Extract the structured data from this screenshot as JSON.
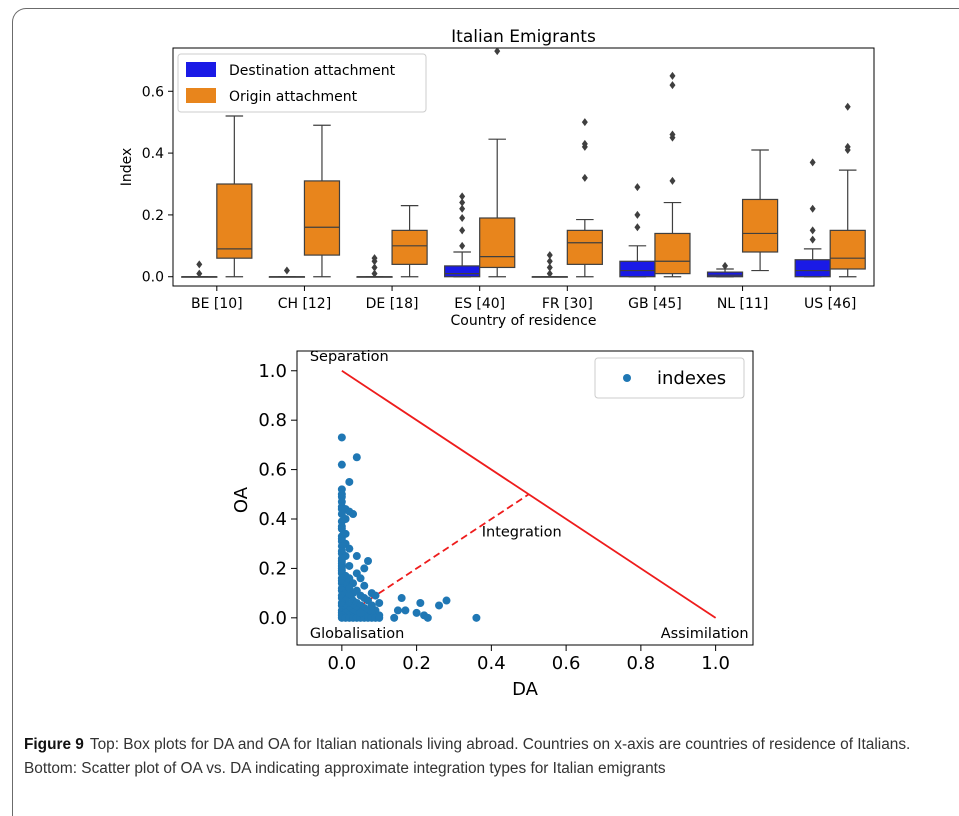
{
  "chart_data": [
    {
      "type": "box",
      "title": "Italian Emigrants",
      "xlabel": "Country of residence",
      "ylabel": "Index",
      "ylim": [
        -0.03,
        0.74
      ],
      "yticks": [
        "0.0",
        "0.2",
        "0.4",
        "0.6"
      ],
      "categories": [
        "BE [10]",
        "CH [12]",
        "DE [18]",
        "ES [40]",
        "FR [30]",
        "GB [45]",
        "NL [11]",
        "US [46]"
      ],
      "legend": {
        "position": "top-left"
      },
      "series": [
        {
          "name": "Destination attachment",
          "color": "#1a1ae6",
          "boxes": [
            {
              "min": 0,
              "q1": 0,
              "median": 0,
              "q3": 0,
              "max": 0,
              "outliers": [
                0.01,
                0.04
              ]
            },
            {
              "min": 0,
              "q1": 0,
              "median": 0,
              "q3": 0,
              "max": 0,
              "outliers": [
                0.02
              ]
            },
            {
              "min": 0,
              "q1": 0,
              "median": 0,
              "q3": 0,
              "max": 0,
              "outliers": [
                0.01,
                0.03,
                0.05,
                0.06
              ]
            },
            {
              "min": 0,
              "q1": 0,
              "median": 0.01,
              "q3": 0.035,
              "max": 0.08,
              "outliers": [
                0.1,
                0.15,
                0.19,
                0.22,
                0.24,
                0.26
              ]
            },
            {
              "min": 0,
              "q1": 0,
              "median": 0,
              "q3": 0,
              "max": 0,
              "outliers": [
                0.01,
                0.03,
                0.05,
                0.07
              ]
            },
            {
              "min": 0,
              "q1": 0,
              "median": 0.02,
              "q3": 0.05,
              "max": 0.1,
              "outliers": [
                0.16,
                0.2,
                0.29
              ]
            },
            {
              "min": 0,
              "q1": 0,
              "median": 0.005,
              "q3": 0.015,
              "max": 0.025,
              "outliers": [
                0.035
              ]
            },
            {
              "min": 0,
              "q1": 0,
              "median": 0.02,
              "q3": 0.055,
              "max": 0.09,
              "outliers": [
                0.12,
                0.15,
                0.22,
                0.37
              ]
            }
          ]
        },
        {
          "name": "Origin attachment",
          "color": "#e8851c",
          "boxes": [
            {
              "min": 0,
              "q1": 0.06,
              "median": 0.09,
              "q3": 0.3,
              "max": 0.52,
              "outliers": []
            },
            {
              "min": 0,
              "q1": 0.07,
              "median": 0.16,
              "q3": 0.31,
              "max": 0.49,
              "outliers": []
            },
            {
              "min": 0,
              "q1": 0.04,
              "median": 0.1,
              "q3": 0.15,
              "max": 0.23,
              "outliers": []
            },
            {
              "min": 0,
              "q1": 0.03,
              "median": 0.065,
              "q3": 0.19,
              "max": 0.445,
              "outliers": [
                0.73
              ]
            },
            {
              "min": 0,
              "q1": 0.04,
              "median": 0.11,
              "q3": 0.15,
              "max": 0.185,
              "outliers": [
                0.32,
                0.42,
                0.43,
                0.5
              ]
            },
            {
              "min": 0,
              "q1": 0.01,
              "median": 0.05,
              "q3": 0.14,
              "max": 0.24,
              "outliers": [
                0.31,
                0.45,
                0.46,
                0.62,
                0.65
              ]
            },
            {
              "min": 0.02,
              "q1": 0.08,
              "median": 0.14,
              "q3": 0.25,
              "max": 0.41,
              "outliers": []
            },
            {
              "min": 0,
              "q1": 0.025,
              "median": 0.06,
              "q3": 0.15,
              "max": 0.345,
              "outliers": [
                0.41,
                0.42,
                0.55
              ]
            }
          ]
        }
      ]
    },
    {
      "type": "scatter",
      "title": "",
      "xlabel": "DA",
      "ylabel": "OA",
      "xlim": [
        -0.12,
        1.1
      ],
      "ylim": [
        -0.11,
        1.08
      ],
      "xticks": [
        "0.0",
        "0.2",
        "0.4",
        "0.6",
        "0.8",
        "1.0"
      ],
      "yticks": [
        "0.0",
        "0.2",
        "0.4",
        "0.6",
        "0.8",
        "1.0"
      ],
      "legend": {
        "position": "top-right"
      },
      "series": [
        {
          "name": "indexes",
          "color": "#1f77b4",
          "points": [
            [
              0,
              0.73
            ],
            [
              0,
              0.62
            ],
            [
              0.04,
              0.65
            ],
            [
              0.02,
              0.55
            ],
            [
              0,
              0.52
            ],
            [
              0,
              0.5
            ],
            [
              0,
              0.49
            ],
            [
              0,
              0.47
            ],
            [
              0,
              0.45
            ],
            [
              0,
              0.44
            ],
            [
              0.01,
              0.44
            ],
            [
              0.02,
              0.43
            ],
            [
              0,
              0.42
            ],
            [
              0.03,
              0.42
            ],
            [
              0.01,
              0.4
            ],
            [
              0,
              0.39
            ],
            [
              0,
              0.37
            ],
            [
              0,
              0.36
            ],
            [
              0.01,
              0.34
            ],
            [
              0,
              0.33
            ],
            [
              0,
              0.32
            ],
            [
              0,
              0.31
            ],
            [
              0.01,
              0.3
            ],
            [
              0,
              0.29
            ],
            [
              0.02,
              0.28
            ],
            [
              0,
              0.27
            ],
            [
              0,
              0.26
            ],
            [
              0.01,
              0.25
            ],
            [
              0.04,
              0.25
            ],
            [
              0,
              0.24
            ],
            [
              0,
              0.23
            ],
            [
              0.07,
              0.23
            ],
            [
              0,
              0.22
            ],
            [
              0,
              0.21
            ],
            [
              0.02,
              0.21
            ],
            [
              0,
              0.2
            ],
            [
              0,
              0.19
            ],
            [
              0.06,
              0.2
            ],
            [
              0,
              0.18
            ],
            [
              0.01,
              0.17
            ],
            [
              0.04,
              0.18
            ],
            [
              0.02,
              0.16
            ],
            [
              0,
              0.16
            ],
            [
              0.05,
              0.16
            ],
            [
              0,
              0.15
            ],
            [
              0.02,
              0.15
            ],
            [
              0.03,
              0.14
            ],
            [
              0,
              0.14
            ],
            [
              0.01,
              0.13
            ],
            [
              0,
              0.12
            ],
            [
              0.06,
              0.13
            ],
            [
              0.02,
              0.12
            ],
            [
              0.04,
              0.11
            ],
            [
              0,
              0.11
            ],
            [
              0.01,
              0.1
            ],
            [
              0.03,
              0.1
            ],
            [
              0.08,
              0.1
            ],
            [
              0.09,
              0.09
            ],
            [
              0,
              0.09
            ],
            [
              0.02,
              0.09
            ],
            [
              0.05,
              0.09
            ],
            [
              0,
              0.08
            ],
            [
              0.06,
              0.08
            ],
            [
              0.01,
              0.07
            ],
            [
              0.03,
              0.07
            ],
            [
              0.07,
              0.07
            ],
            [
              0,
              0.06
            ],
            [
              0.04,
              0.06
            ],
            [
              0.1,
              0.06
            ],
            [
              0.02,
              0.05
            ],
            [
              0,
              0.05
            ],
            [
              0.05,
              0.05
            ],
            [
              0.08,
              0.05
            ],
            [
              0.01,
              0.04
            ],
            [
              0.03,
              0.04
            ],
            [
              0.06,
              0.04
            ],
            [
              0,
              0.03
            ],
            [
              0.02,
              0.03
            ],
            [
              0.04,
              0.03
            ],
            [
              0.07,
              0.03
            ],
            [
              0.09,
              0.03
            ],
            [
              0,
              0.02
            ],
            [
              0.01,
              0.02
            ],
            [
              0.03,
              0.02
            ],
            [
              0.05,
              0.02
            ],
            [
              0.08,
              0.02
            ],
            [
              0,
              0.01
            ],
            [
              0.02,
              0.01
            ],
            [
              0.04,
              0.01
            ],
            [
              0.06,
              0.01
            ],
            [
              0.1,
              0.01
            ],
            [
              0,
              0
            ],
            [
              0.01,
              0
            ],
            [
              0.02,
              0
            ],
            [
              0.03,
              0
            ],
            [
              0.04,
              0
            ],
            [
              0.05,
              0
            ],
            [
              0.06,
              0
            ],
            [
              0.07,
              0
            ],
            [
              0.08,
              0
            ],
            [
              0.09,
              0
            ],
            [
              0.1,
              0
            ],
            [
              0.02,
              0.12
            ],
            [
              0.05,
              0.02
            ],
            [
              0.08,
              0.05
            ],
            [
              0.14,
              0
            ],
            [
              0.15,
              0.03
            ],
            [
              0.17,
              0.03
            ],
            [
              0.16,
              0.08
            ],
            [
              0.2,
              0.02
            ],
            [
              0.22,
              0.01
            ],
            [
              0.23,
              0
            ],
            [
              0.21,
              0.06
            ],
            [
              0.26,
              0.05
            ],
            [
              0.28,
              0.07
            ],
            [
              0.36,
              0
            ]
          ]
        }
      ],
      "reference_lines": [
        {
          "style": "solid",
          "color": "#ee1c1c",
          "from": [
            0,
            1
          ],
          "to": [
            1,
            0
          ]
        },
        {
          "style": "dashed",
          "color": "#ee1c1c",
          "from": [
            0,
            0
          ],
          "to": [
            0.5,
            0.5
          ]
        }
      ],
      "annotations": [
        {
          "text": "Separation",
          "x": 0,
          "y": 1.0
        },
        {
          "text": "Integration",
          "x": 0.5,
          "y": 0.35
        },
        {
          "text": "Globalisation",
          "x": 0,
          "y": 0
        },
        {
          "text": "Assimilation",
          "x": 1.0,
          "y": 0
        }
      ]
    }
  ],
  "caption": {
    "label": "Figure 9",
    "text": "Top: Box plots for DA and OA for Italian nationals living abroad. Countries on x-axis are countries of residence of Italians. Bottom: Scatter plot of OA vs. DA indicating approximate integration types for Italian emigrants"
  }
}
